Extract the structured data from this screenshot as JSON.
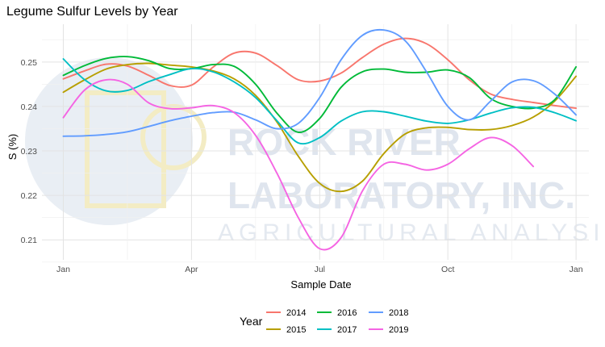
{
  "chart_data": {
    "type": "line",
    "title": "Legume Sulfur Levels by Year",
    "xlabel": "Sample Date",
    "ylabel": "S (%)",
    "x_ticks": [
      "Jan",
      "Apr",
      "Jul",
      "Oct",
      "Jan"
    ],
    "x_tick_months": [
      0,
      3,
      6,
      9,
      12
    ],
    "y_ticks": [
      0.21,
      0.22,
      0.23,
      0.24,
      0.25
    ],
    "ylim": [
      0.2055,
      0.2585
    ],
    "xlim": [
      -0.5,
      12.3
    ],
    "grid": true,
    "legend": {
      "title": "Year",
      "position": "bottom"
    },
    "x_unit": "months from January",
    "series": [
      {
        "name": "2014",
        "color": "#F8766D",
        "x": [
          0,
          0.5,
          1,
          1.5,
          2,
          2.5,
          3,
          3.5,
          4,
          4.5,
          5,
          5.5,
          6,
          6.5,
          7,
          7.5,
          8,
          8.5,
          9,
          9.5,
          10,
          10.5,
          11,
          11.5,
          12
        ],
        "y": [
          0.2462,
          0.248,
          0.2495,
          0.2491,
          0.247,
          0.2447,
          0.2448,
          0.2488,
          0.252,
          0.252,
          0.2492,
          0.246,
          0.2457,
          0.2475,
          0.251,
          0.254,
          0.2553,
          0.2541,
          0.2505,
          0.246,
          0.2428,
          0.2416,
          0.2409,
          0.2402,
          0.2396
        ]
      },
      {
        "name": "2015",
        "color": "#B79F00",
        "x": [
          0,
          0.5,
          1,
          1.5,
          2,
          2.5,
          3,
          3.5,
          4,
          4.5,
          5,
          5.5,
          6,
          6.5,
          7,
          7.5,
          8,
          8.5,
          9,
          9.5,
          10,
          10.5,
          11,
          11.5,
          12
        ],
        "y": [
          0.2432,
          0.246,
          0.2484,
          0.2494,
          0.2497,
          0.2493,
          0.2489,
          0.248,
          0.2462,
          0.2425,
          0.2365,
          0.2288,
          0.2227,
          0.2209,
          0.2232,
          0.2294,
          0.2338,
          0.2352,
          0.2353,
          0.2348,
          0.2348,
          0.2357,
          0.2376,
          0.2412,
          0.2468
        ]
      },
      {
        "name": "2016",
        "color": "#00BA38",
        "x": [
          0,
          0.5,
          1,
          1.5,
          2,
          2.5,
          3,
          3.5,
          4,
          4.5,
          5,
          5.5,
          6,
          6.5,
          7,
          7.5,
          8,
          8.5,
          9,
          9.5,
          10,
          10.5,
          11,
          11.5,
          12
        ],
        "y": [
          0.247,
          0.2492,
          0.2508,
          0.2512,
          0.2503,
          0.2485,
          0.2485,
          0.2494,
          0.249,
          0.245,
          0.2385,
          0.2342,
          0.2373,
          0.2443,
          0.2478,
          0.2484,
          0.2477,
          0.2477,
          0.2482,
          0.2465,
          0.2418,
          0.24,
          0.2396,
          0.2415,
          0.2489
        ]
      },
      {
        "name": "2017",
        "color": "#00BFC4",
        "x": [
          0,
          0.5,
          1,
          1.5,
          2,
          2.5,
          3,
          3.5,
          4,
          4.5,
          5,
          5.5,
          6,
          6.5,
          7,
          7.5,
          8,
          8.5,
          9,
          9.5,
          10,
          10.5,
          11,
          11.5,
          12
        ],
        "y": [
          0.2507,
          0.246,
          0.2435,
          0.2436,
          0.2456,
          0.2472,
          0.2485,
          0.2478,
          0.2455,
          0.242,
          0.2368,
          0.2318,
          0.233,
          0.2367,
          0.2388,
          0.2388,
          0.2378,
          0.2367,
          0.2362,
          0.237,
          0.2385,
          0.2397,
          0.2398,
          0.2386,
          0.2368
        ]
      },
      {
        "name": "2018",
        "color": "#619CFF",
        "x": [
          0,
          0.5,
          1,
          1.5,
          2,
          2.5,
          3,
          3.5,
          4,
          4.5,
          5,
          5.5,
          6,
          6.5,
          7,
          7.5,
          8,
          8.5,
          9,
          9.5,
          10,
          10.5,
          11,
          11.5,
          12
        ],
        "y": [
          0.2333,
          0.2334,
          0.2337,
          0.2343,
          0.2355,
          0.2368,
          0.2378,
          0.2386,
          0.2387,
          0.237,
          0.235,
          0.2362,
          0.242,
          0.2505,
          0.256,
          0.2572,
          0.2548,
          0.2478,
          0.24,
          0.237,
          0.2412,
          0.2455,
          0.2458,
          0.2428,
          0.2381
        ]
      },
      {
        "name": "2019",
        "color": "#F564E3",
        "x": [
          0,
          0.5,
          1,
          1.5,
          2,
          2.5,
          3,
          3.5,
          4,
          4.5,
          5,
          5.5,
          6,
          6.5,
          7,
          7.5,
          8,
          8.5,
          9,
          9.5,
          10,
          10.5,
          11
        ],
        "y": [
          0.2375,
          0.2437,
          0.246,
          0.245,
          0.2408,
          0.2395,
          0.2397,
          0.2402,
          0.2386,
          0.2335,
          0.225,
          0.215,
          0.208,
          0.2105,
          0.221,
          0.227,
          0.227,
          0.2257,
          0.227,
          0.2305,
          0.233,
          0.2312,
          0.2265
        ]
      }
    ]
  },
  "watermark": {
    "line1": "ROCK RIVER",
    "line2": "LABORATORY, INC.",
    "line3": "AGRICULTURAL ANALYSIS"
  }
}
